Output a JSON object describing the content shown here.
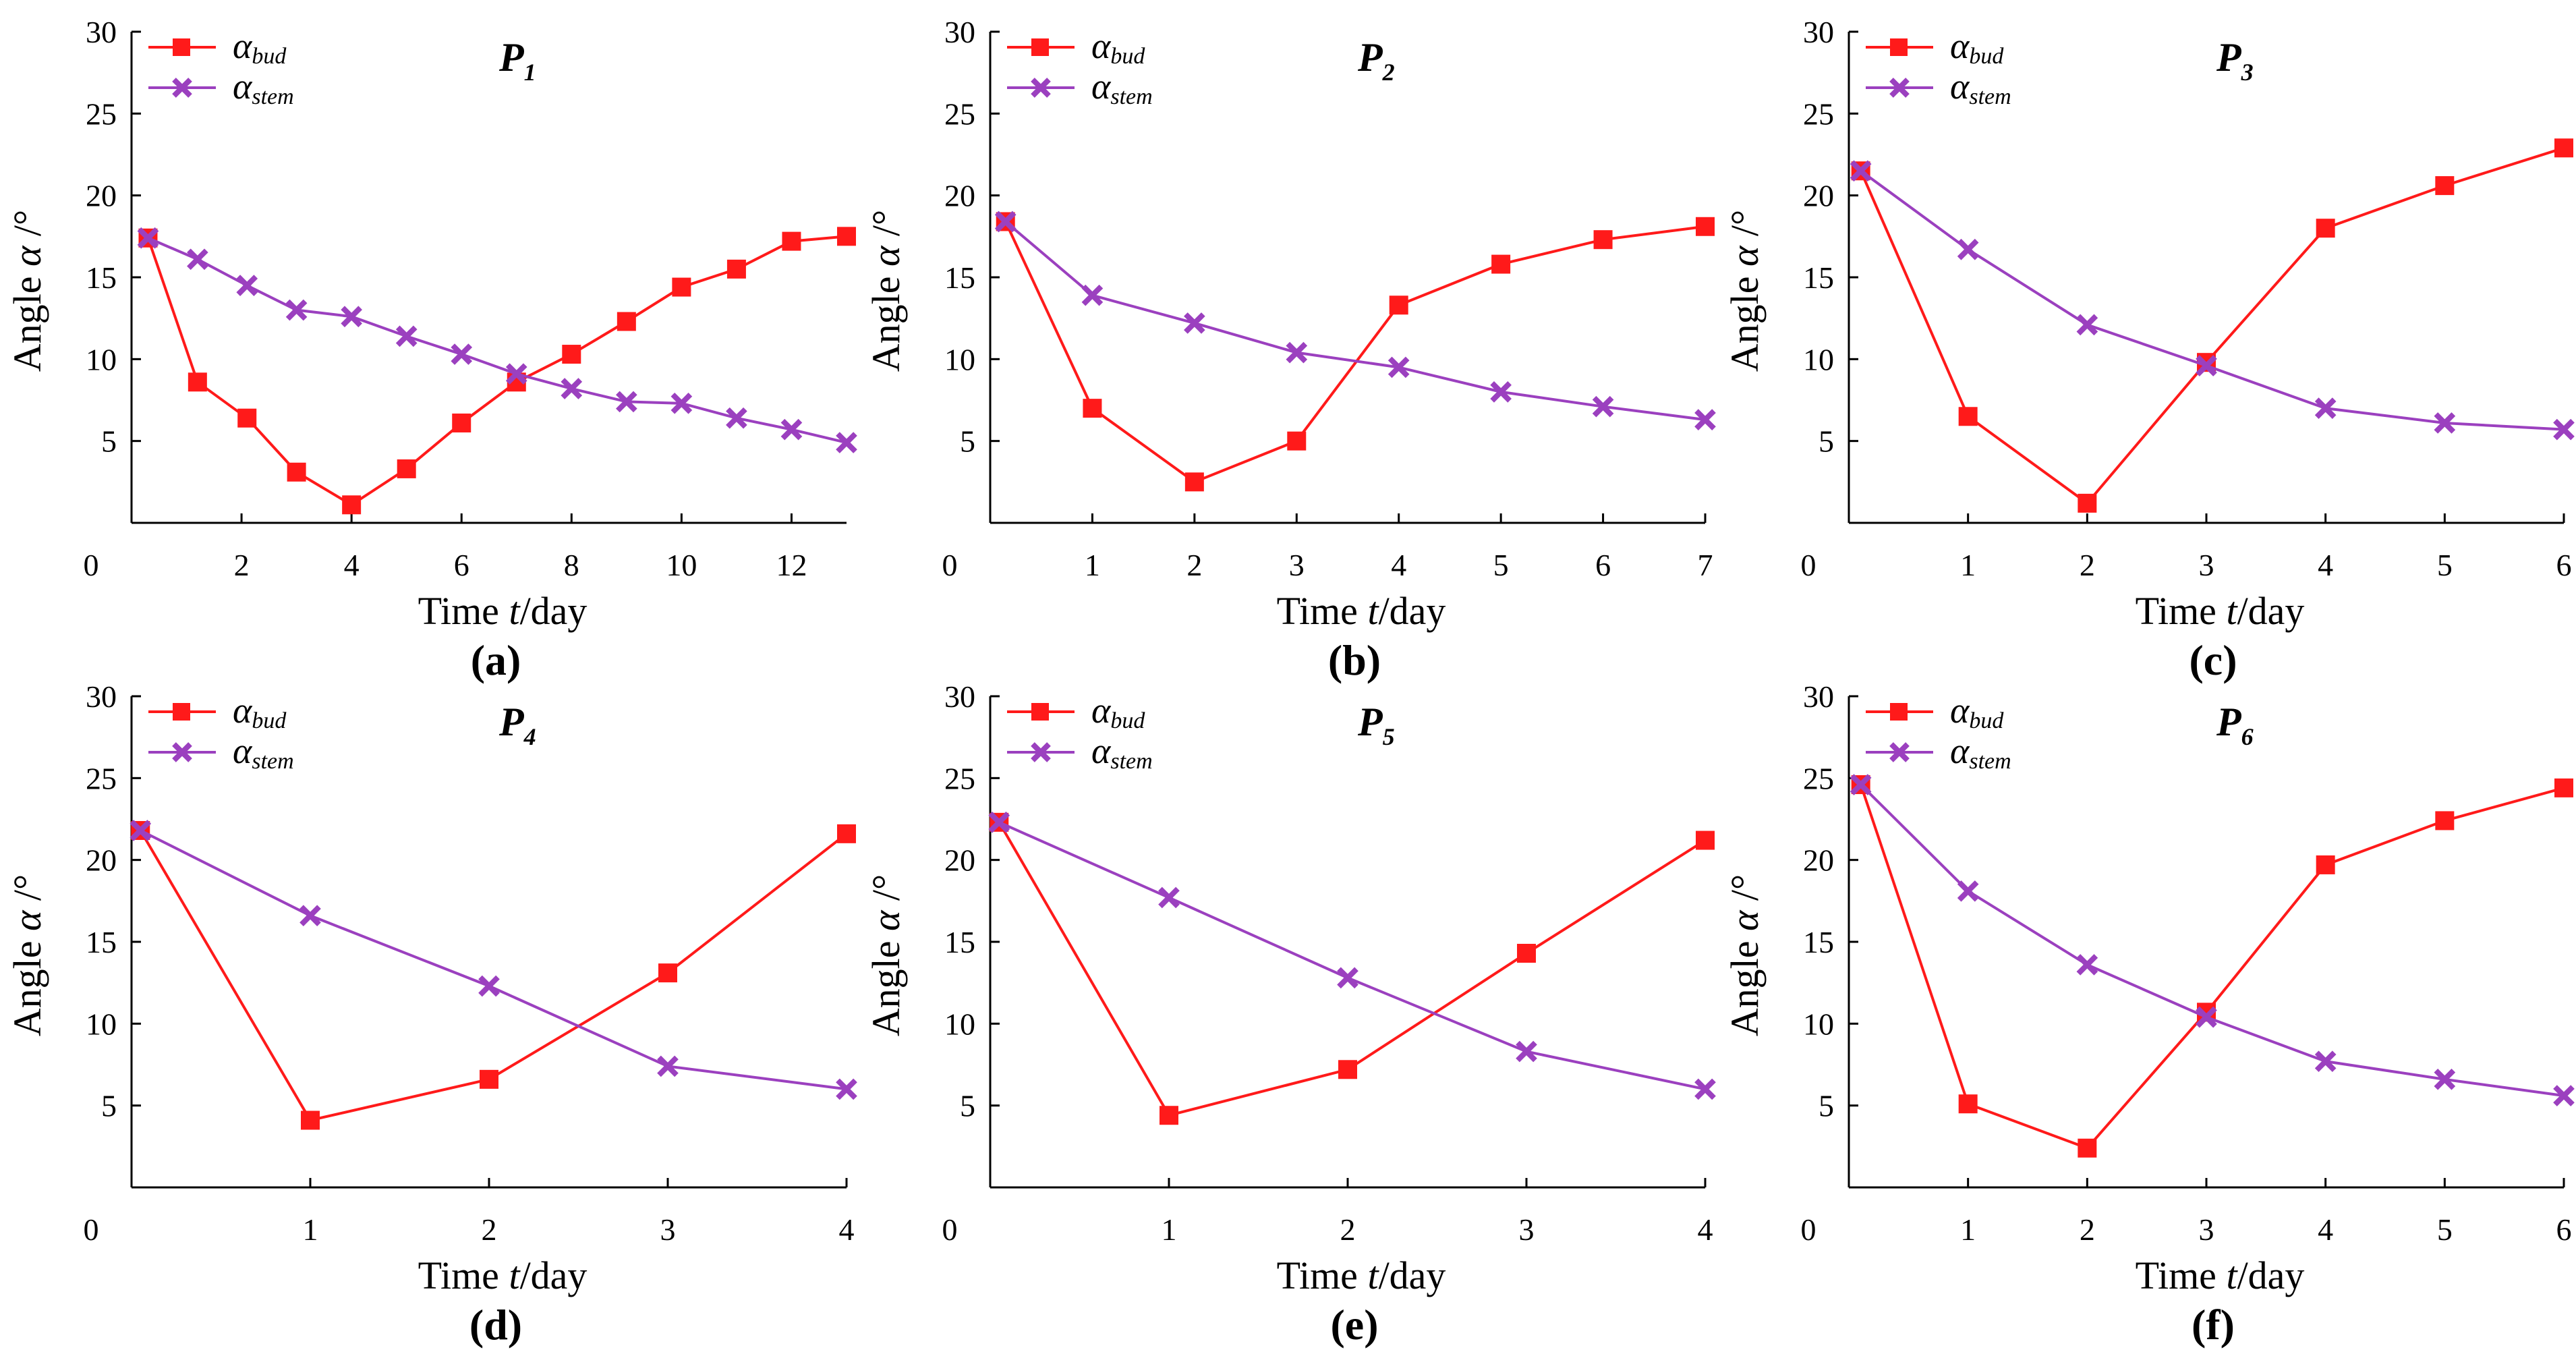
{
  "chart_data": [
    {
      "type": "line",
      "panel_label": "(a)",
      "title": {
        "main": "P",
        "sub": "1"
      },
      "xlabel": {
        "pre": "Time ",
        "var": "t",
        "post": "/day"
      },
      "ylabel": {
        "pre": "Angle ",
        "var": "α",
        "post": " /°"
      },
      "xlim": [
        0,
        13
      ],
      "ylim": [
        0,
        30
      ],
      "xticks": [
        0,
        2,
        4,
        6,
        8,
        10,
        12
      ],
      "yticks": [
        5,
        10,
        15,
        20,
        25,
        30
      ],
      "legend_position": "top-left",
      "series": [
        {
          "name": {
            "main": "α",
            "sub": "bud"
          },
          "color": "#ff1a1a",
          "marker": "square",
          "x": [
            0.3,
            1.2,
            2.1,
            3.0,
            4.0,
            5.0,
            6.0,
            7.0,
            8.0,
            9.0,
            10.0,
            11.0,
            12.0,
            13.0
          ],
          "y": [
            17.4,
            8.6,
            6.4,
            3.1,
            1.1,
            3.3,
            6.1,
            8.6,
            10.3,
            12.3,
            14.4,
            15.5,
            17.2,
            17.5
          ]
        },
        {
          "name": {
            "main": "α",
            "sub": "stem"
          },
          "color": "#9b40bf",
          "marker": "x",
          "x": [
            0.3,
            1.2,
            2.1,
            3.0,
            4.0,
            5.0,
            6.0,
            7.0,
            8.0,
            9.0,
            10.0,
            11.0,
            12.0,
            13.0
          ],
          "y": [
            17.4,
            16.1,
            14.5,
            13.0,
            12.6,
            11.4,
            10.3,
            9.1,
            8.2,
            7.4,
            7.3,
            6.4,
            5.7,
            4.9
          ]
        }
      ]
    },
    {
      "type": "line",
      "panel_label": "(b)",
      "title": {
        "main": "P",
        "sub": "2"
      },
      "xlabel": {
        "pre": "Time ",
        "var": "t",
        "post": "/day"
      },
      "ylabel": {
        "pre": "Angle ",
        "var": "α",
        "post": " /°"
      },
      "xlim": [
        0,
        7
      ],
      "ylim": [
        0,
        30
      ],
      "xticks": [
        0,
        1,
        2,
        3,
        4,
        5,
        6,
        7
      ],
      "yticks": [
        5,
        10,
        15,
        20,
        25,
        30
      ],
      "legend_position": "top-left",
      "series": [
        {
          "name": {
            "main": "α",
            "sub": "bud"
          },
          "color": "#ff1a1a",
          "marker": "square",
          "x": [
            0.15,
            1,
            2,
            3,
            4,
            5,
            6,
            7
          ],
          "y": [
            18.4,
            7.0,
            2.5,
            5.0,
            13.3,
            15.8,
            17.3,
            18.1
          ]
        },
        {
          "name": {
            "main": "α",
            "sub": "stem"
          },
          "color": "#9b40bf",
          "marker": "x",
          "x": [
            0.15,
            1,
            2,
            3,
            4,
            5,
            6,
            7
          ],
          "y": [
            18.4,
            13.9,
            12.2,
            10.4,
            9.5,
            8.0,
            7.1,
            6.3
          ]
        }
      ]
    },
    {
      "type": "line",
      "panel_label": "(c)",
      "title": {
        "main": "P",
        "sub": "3"
      },
      "xlabel": {
        "pre": "Time ",
        "var": "t",
        "post": "/day"
      },
      "ylabel": {
        "pre": "Angle ",
        "var": "α",
        "post": " /°"
      },
      "xlim": [
        0,
        6
      ],
      "ylim": [
        0,
        30
      ],
      "xticks": [
        0,
        1,
        2,
        3,
        4,
        5,
        6
      ],
      "yticks": [
        5,
        10,
        15,
        20,
        25,
        30
      ],
      "legend_position": "top-left",
      "series": [
        {
          "name": {
            "main": "α",
            "sub": "bud"
          },
          "color": "#ff1a1a",
          "marker": "square",
          "x": [
            0.1,
            1,
            2,
            3,
            4,
            5,
            6
          ],
          "y": [
            21.5,
            6.5,
            1.2,
            9.8,
            18.0,
            20.6,
            22.9
          ]
        },
        {
          "name": {
            "main": "α",
            "sub": "stem"
          },
          "color": "#9b40bf",
          "marker": "x",
          "x": [
            0.1,
            1,
            2,
            3,
            4,
            5,
            6
          ],
          "y": [
            21.5,
            16.7,
            12.1,
            9.6,
            7.0,
            6.1,
            5.7
          ]
        }
      ]
    },
    {
      "type": "line",
      "panel_label": "(d)",
      "title": {
        "main": "P",
        "sub": "4"
      },
      "xlabel": {
        "pre": "Time ",
        "var": "t",
        "post": "/day"
      },
      "ylabel": {
        "pre": "Angle ",
        "var": "α",
        "post": " /°"
      },
      "xlim": [
        0,
        4
      ],
      "ylim": [
        0,
        30
      ],
      "xticks": [
        0,
        1,
        2,
        3,
        4
      ],
      "yticks": [
        5,
        10,
        15,
        20,
        25,
        30
      ],
      "legend_position": "top-left",
      "series": [
        {
          "name": {
            "main": "α",
            "sub": "bud"
          },
          "color": "#ff1a1a",
          "marker": "square",
          "x": [
            0.05,
            1,
            2,
            3,
            4
          ],
          "y": [
            21.8,
            4.1,
            6.6,
            13.1,
            21.6
          ]
        },
        {
          "name": {
            "main": "α",
            "sub": "stem"
          },
          "color": "#9b40bf",
          "marker": "x",
          "x": [
            0.05,
            1,
            2,
            3,
            4
          ],
          "y": [
            21.8,
            16.6,
            12.3,
            7.4,
            6.0
          ]
        }
      ]
    },
    {
      "type": "line",
      "panel_label": "(e)",
      "title": {
        "main": "P",
        "sub": "5"
      },
      "xlabel": {
        "pre": "Time ",
        "var": "t",
        "post": "/day"
      },
      "ylabel": {
        "pre": "Angle ",
        "var": "α",
        "post": " /°"
      },
      "xlim": [
        0,
        4
      ],
      "ylim": [
        0,
        30
      ],
      "xticks": [
        0,
        1,
        2,
        3,
        4
      ],
      "yticks": [
        5,
        10,
        15,
        20,
        25,
        30
      ],
      "legend_position": "top-left",
      "series": [
        {
          "name": {
            "main": "α",
            "sub": "bud"
          },
          "color": "#ff1a1a",
          "marker": "square",
          "x": [
            0.05,
            1,
            2,
            3,
            4
          ],
          "y": [
            22.3,
            4.4,
            7.2,
            14.3,
            21.2
          ]
        },
        {
          "name": {
            "main": "α",
            "sub": "stem"
          },
          "color": "#9b40bf",
          "marker": "x",
          "x": [
            0.05,
            1,
            2,
            3,
            4
          ],
          "y": [
            22.3,
            17.7,
            12.8,
            8.3,
            6.0
          ]
        }
      ]
    },
    {
      "type": "line",
      "panel_label": "(f)",
      "title": {
        "main": "P",
        "sub": "6"
      },
      "xlabel": {
        "pre": "Time ",
        "var": "t",
        "post": "/day"
      },
      "ylabel": {
        "pre": "Angle ",
        "var": "α",
        "post": " /°"
      },
      "xlim": [
        0,
        6
      ],
      "ylim": [
        0,
        30
      ],
      "xticks": [
        0,
        1,
        2,
        3,
        4,
        5,
        6
      ],
      "yticks": [
        5,
        10,
        15,
        20,
        25,
        30
      ],
      "legend_position": "top-left",
      "series": [
        {
          "name": {
            "main": "α",
            "sub": "bud"
          },
          "color": "#ff1a1a",
          "marker": "square",
          "x": [
            0.1,
            1,
            2,
            3,
            4,
            5,
            6
          ],
          "y": [
            24.6,
            5.1,
            2.4,
            10.7,
            19.7,
            22.4,
            24.4
          ]
        },
        {
          "name": {
            "main": "α",
            "sub": "stem"
          },
          "color": "#9b40bf",
          "marker": "x",
          "x": [
            0.1,
            1,
            2,
            3,
            4,
            5,
            6
          ],
          "y": [
            24.6,
            18.1,
            13.6,
            10.4,
            7.7,
            6.6,
            5.6
          ]
        }
      ]
    }
  ]
}
